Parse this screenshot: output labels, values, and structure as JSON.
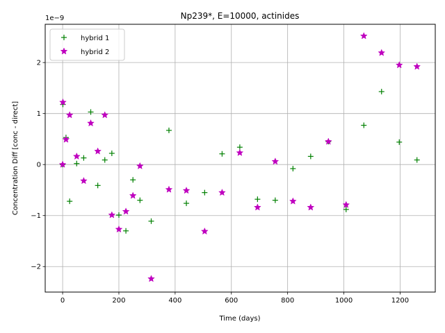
{
  "chart_data": {
    "type": "scatter",
    "title": "Np239*, E=10000, actinides",
    "xlabel": "Time (days)",
    "ylabel": "Concentration Diff [conc - direct]",
    "y_scale_label": "1e−9",
    "xlim": [
      -62,
      1325
    ],
    "ylim": [
      -2.5,
      2.75
    ],
    "x_ticks": [
      0,
      200,
      400,
      600,
      800,
      1000,
      1200
    ],
    "y_ticks": [
      -2,
      -1,
      0,
      1,
      2
    ],
    "x_tick_labels": [
      "0",
      "200",
      "400",
      "600",
      "800",
      "1000",
      "1200"
    ],
    "y_tick_labels": [
      "−2",
      "−1",
      "0",
      "1",
      "2"
    ],
    "grid": true,
    "legend_position": "upper-left",
    "series": [
      {
        "name": "hybrid 1",
        "marker": "plus",
        "color": "#008000",
        "x": [
          0,
          1,
          12,
          25,
          50,
          75,
          100,
          125,
          150,
          175,
          200,
          225,
          250,
          275,
          315,
          378,
          440,
          505,
          567,
          630,
          693,
          756,
          819,
          882,
          945,
          1008,
          1071,
          1134,
          1197,
          1260
        ],
        "y": [
          0.0,
          1.18,
          0.53,
          -0.72,
          0.02,
          0.13,
          1.03,
          -0.41,
          0.09,
          0.22,
          -0.99,
          -1.3,
          -0.3,
          -0.7,
          -1.11,
          0.67,
          -0.76,
          -0.55,
          0.21,
          0.34,
          -0.68,
          -0.7,
          -0.08,
          0.16,
          0.45,
          -0.88,
          0.77,
          1.43,
          0.44,
          0.09
        ]
      },
      {
        "name": "hybrid 2",
        "marker": "star",
        "color": "#bf00bf",
        "x": [
          0,
          1,
          12,
          25,
          50,
          75,
          100,
          125,
          150,
          175,
          200,
          225,
          250,
          275,
          315,
          378,
          440,
          505,
          567,
          630,
          693,
          756,
          819,
          882,
          945,
          1008,
          1071,
          1134,
          1197,
          1260
        ],
        "y": [
          0.0,
          1.22,
          0.49,
          0.97,
          0.16,
          -0.32,
          0.81,
          0.26,
          0.97,
          -0.99,
          -1.27,
          -0.92,
          -0.61,
          -0.03,
          -2.24,
          -0.49,
          -0.51,
          -1.31,
          -0.55,
          0.23,
          -0.84,
          0.06,
          -0.72,
          -0.84,
          0.45,
          -0.79,
          2.52,
          2.19,
          1.95,
          1.92
        ]
      }
    ]
  }
}
